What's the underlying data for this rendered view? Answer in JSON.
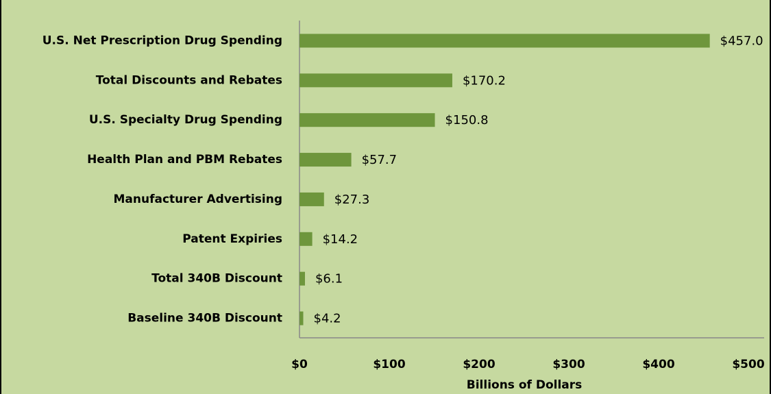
{
  "chart_data": {
    "type": "bar",
    "orientation": "horizontal",
    "categories": [
      "U.S. Net Prescription Drug Spending",
      "Total Discounts and Rebates",
      "U.S. Specialty Drug Spending",
      "Health Plan and PBM Rebates",
      "Manufacturer Advertising",
      "Patent Expiries",
      "Total 340B Discount",
      "Baseline 340B Discount"
    ],
    "values": [
      457.0,
      170.2,
      150.8,
      57.7,
      27.3,
      14.2,
      6.1,
      4.2
    ],
    "value_labels": [
      "$457.0",
      "$170.2",
      "$150.8",
      "$57.7",
      "$27.3",
      "$14.2",
      "$6.1",
      "$4.2"
    ],
    "color": "#6e963c",
    "x_label": "Billions of Dollars",
    "xlim": [
      0,
      500
    ],
    "xticks": [
      {
        "value": 0,
        "label": "$0"
      },
      {
        "value": 100,
        "label": "$100"
      },
      {
        "value": 200,
        "label": "$200"
      },
      {
        "value": 300,
        "label": "$300"
      },
      {
        "value": 400,
        "label": "$400"
      },
      {
        "value": 500,
        "label": "$500"
      }
    ],
    "grid": false
  }
}
